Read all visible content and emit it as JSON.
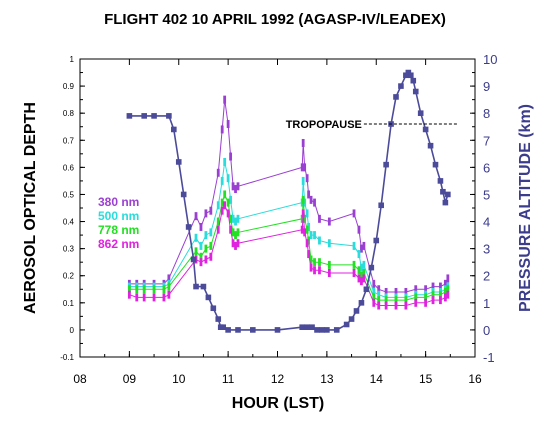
{
  "chart_data": {
    "type": "line",
    "title": "FLIGHT 402  10 APRIL 1992 (AGASP-IV/LEADEX)",
    "xlabel": "HOUR  (LST)",
    "ylabel": "AEROSOL OPTICAL DEPTH",
    "y2label": "PRESSURE ALTITUDE (km)",
    "xlim": [
      8,
      16
    ],
    "ylim": [
      -0.1,
      1.0
    ],
    "y2lim": [
      -1,
      10
    ],
    "x_ticks": [
      "08",
      "09",
      "10",
      "11",
      "12",
      "13",
      "14",
      "15",
      "16"
    ],
    "y_ticks": [
      "-0.1",
      "0",
      "0.1",
      "0.2",
      "0.3",
      "0.4",
      "0.5",
      "0.6",
      "0.7",
      "0.8",
      "0.9",
      "1"
    ],
    "y2_ticks": [
      "-1",
      "0",
      "1",
      "2",
      "3",
      "4",
      "5",
      "6",
      "7",
      "8",
      "9",
      "10"
    ],
    "grid": false,
    "legend_position": "left",
    "annotation": {
      "text": "TROPOPAUSE",
      "y2_value": 7.6,
      "x_start": 13.75,
      "x_end": 15.65
    },
    "series": [
      {
        "name": "380 nm",
        "color": "#9b3fd2",
        "axis": "left",
        "x": [
          9.0,
          9.15,
          9.3,
          9.5,
          9.7,
          9.8,
          10.35,
          10.45,
          10.55,
          10.65,
          10.8,
          10.88,
          10.93,
          11.0,
          11.05,
          11.1,
          11.15,
          11.2,
          12.5,
          12.52,
          12.55,
          12.6,
          12.63,
          12.68,
          12.75,
          12.85,
          13.05,
          13.55,
          13.65,
          13.7,
          13.75,
          13.95,
          14.05,
          14.2,
          14.4,
          14.6,
          14.8,
          15.0,
          15.15,
          15.3,
          15.4,
          15.45
        ],
        "values": [
          0.17,
          0.17,
          0.17,
          0.17,
          0.17,
          0.19,
          0.42,
          0.38,
          0.43,
          0.44,
          0.58,
          0.74,
          0.85,
          0.76,
          0.64,
          0.53,
          0.52,
          0.53,
          0.6,
          0.69,
          0.6,
          0.56,
          0.5,
          0.48,
          0.47,
          0.41,
          0.4,
          0.43,
          0.37,
          0.3,
          0.31,
          0.17,
          0.15,
          0.14,
          0.14,
          0.14,
          0.15,
          0.15,
          0.16,
          0.16,
          0.17,
          0.19
        ]
      },
      {
        "name": "500 nm",
        "color": "#2adcdc",
        "axis": "left",
        "x": [
          9.0,
          9.15,
          9.3,
          9.5,
          9.7,
          9.8,
          10.35,
          10.45,
          10.55,
          10.65,
          10.8,
          10.88,
          10.93,
          11.0,
          11.05,
          11.1,
          11.15,
          11.2,
          12.5,
          12.52,
          12.55,
          12.6,
          12.63,
          12.68,
          12.75,
          12.85,
          13.05,
          13.55,
          13.65,
          13.7,
          13.75,
          13.95,
          14.05,
          14.2,
          14.4,
          14.6,
          14.8,
          15.0,
          15.15,
          15.3,
          15.4,
          15.45
        ],
        "values": [
          0.16,
          0.16,
          0.16,
          0.16,
          0.16,
          0.17,
          0.34,
          0.31,
          0.35,
          0.36,
          0.46,
          0.55,
          0.62,
          0.56,
          0.48,
          0.41,
          0.4,
          0.41,
          0.47,
          0.55,
          0.47,
          0.43,
          0.38,
          0.35,
          0.35,
          0.33,
          0.32,
          0.31,
          0.28,
          0.23,
          0.24,
          0.14,
          0.13,
          0.12,
          0.12,
          0.12,
          0.13,
          0.13,
          0.14,
          0.14,
          0.15,
          0.16
        ]
      },
      {
        "name": "778 nm",
        "color": "#22e022",
        "axis": "left",
        "x": [
          9.0,
          9.15,
          9.3,
          9.5,
          9.7,
          9.8,
          10.35,
          10.45,
          10.55,
          10.65,
          10.8,
          10.88,
          10.93,
          11.0,
          11.05,
          11.1,
          11.15,
          11.2,
          12.5,
          12.52,
          12.55,
          12.6,
          12.63,
          12.68,
          12.75,
          12.85,
          13.05,
          13.55,
          13.65,
          13.7,
          13.75,
          13.95,
          14.05,
          14.2,
          14.4,
          14.6,
          14.8,
          15.0,
          15.15,
          15.3,
          15.4,
          15.45
        ],
        "values": [
          0.15,
          0.15,
          0.15,
          0.15,
          0.15,
          0.16,
          0.29,
          0.27,
          0.3,
          0.31,
          0.4,
          0.47,
          0.5,
          0.47,
          0.41,
          0.36,
          0.35,
          0.36,
          0.41,
          0.48,
          0.41,
          0.37,
          0.33,
          0.26,
          0.25,
          0.25,
          0.24,
          0.24,
          0.22,
          0.2,
          0.21,
          0.12,
          0.11,
          0.11,
          0.11,
          0.11,
          0.12,
          0.12,
          0.13,
          0.13,
          0.14,
          0.15
        ]
      },
      {
        "name": "862 nm",
        "color": "#e022e0",
        "axis": "left",
        "x": [
          9.0,
          9.15,
          9.3,
          9.5,
          9.7,
          9.8,
          10.35,
          10.45,
          10.55,
          10.65,
          10.8,
          10.88,
          10.93,
          11.0,
          11.05,
          11.1,
          11.15,
          11.2,
          12.5,
          12.52,
          12.55,
          12.6,
          12.63,
          12.68,
          12.75,
          12.85,
          13.05,
          13.55,
          13.65,
          13.7,
          13.75,
          13.95,
          14.05,
          14.2,
          14.4,
          14.6,
          14.8,
          15.0,
          15.15,
          15.3,
          15.4,
          15.45
        ],
        "values": [
          0.13,
          0.12,
          0.12,
          0.12,
          0.12,
          0.13,
          0.26,
          0.25,
          0.26,
          0.27,
          0.37,
          0.44,
          0.46,
          0.43,
          0.37,
          0.32,
          0.31,
          0.32,
          0.37,
          0.43,
          0.36,
          0.32,
          0.28,
          0.23,
          0.22,
          0.22,
          0.21,
          0.21,
          0.19,
          0.18,
          0.19,
          0.1,
          0.09,
          0.09,
          0.09,
          0.09,
          0.1,
          0.1,
          0.11,
          0.11,
          0.12,
          0.13
        ]
      },
      {
        "name": "",
        "color": "#4b4b9a",
        "axis": "right",
        "x": [
          9.0,
          9.3,
          9.5,
          9.8,
          9.9,
          10.0,
          10.1,
          10.2,
          10.3,
          10.35,
          10.5,
          10.6,
          10.7,
          10.8,
          10.85,
          10.9,
          11.0,
          11.2,
          11.5,
          12.0,
          12.5,
          12.6,
          12.7,
          12.8,
          12.9,
          13.0,
          13.2,
          13.4,
          13.5,
          13.6,
          13.7,
          13.8,
          13.9,
          14.0,
          14.1,
          14.2,
          14.3,
          14.4,
          14.5,
          14.6,
          14.65,
          14.7,
          14.75,
          14.8,
          14.9,
          15.0,
          15.1,
          15.2,
          15.3,
          15.35,
          15.4,
          15.45
        ],
        "values": [
          7.9,
          7.9,
          7.9,
          7.9,
          7.4,
          6.2,
          5.0,
          3.8,
          2.6,
          1.6,
          1.6,
          1.2,
          0.8,
          0.4,
          0.1,
          0.1,
          0.0,
          0.0,
          0.0,
          0.0,
          0.1,
          0.1,
          0.1,
          0.0,
          0.0,
          0.0,
          0.0,
          0.2,
          0.4,
          0.7,
          1.0,
          1.5,
          2.3,
          3.3,
          4.6,
          6.1,
          7.6,
          8.6,
          9.0,
          9.4,
          9.5,
          9.4,
          9.2,
          8.8,
          8.0,
          7.4,
          6.8,
          6.1,
          5.5,
          5.1,
          4.7,
          5.0
        ]
      }
    ]
  }
}
